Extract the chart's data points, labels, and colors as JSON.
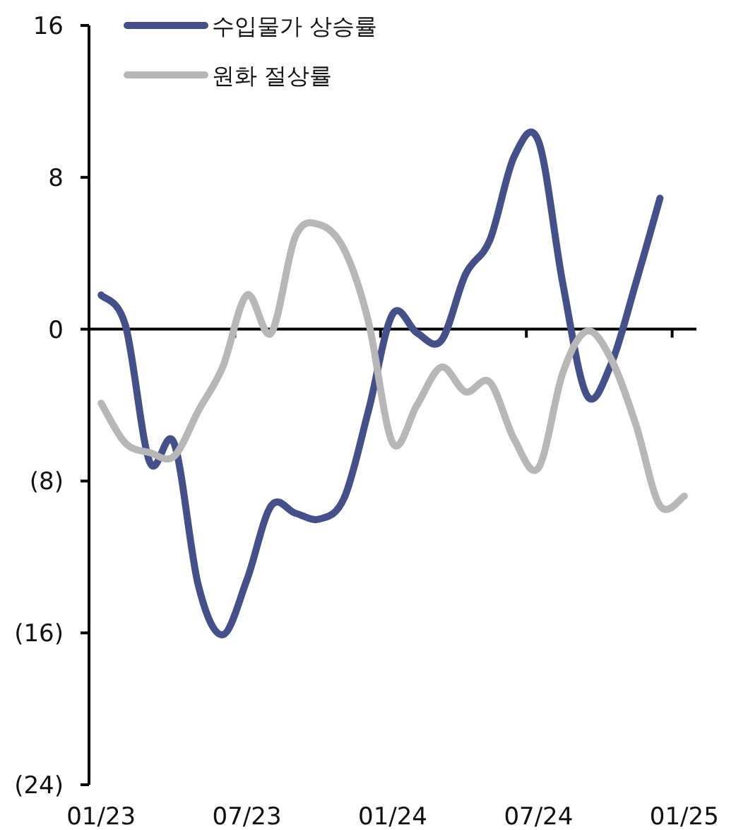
{
  "chart_data": {
    "type": "line",
    "categories": [
      "01/23",
      null,
      null,
      null,
      null,
      null,
      "07/23",
      null,
      null,
      null,
      null,
      null,
      "01/24",
      null,
      null,
      null,
      null,
      null,
      "07/24",
      null,
      null,
      null,
      null,
      null,
      "01/25"
    ],
    "series": [
      {
        "name": "수입물가 상승률",
        "color": "#44508a",
        "values": [
          1.8,
          0.2,
          -7.0,
          -6.0,
          -13.5,
          -16.1,
          -13.2,
          -9.3,
          -9.7,
          -10.0,
          -8.9,
          -4.3,
          0.8,
          -0.2,
          -0.6,
          2.9,
          4.7,
          9.1,
          9.9,
          2.4,
          -3.5,
          -1.8,
          2.4,
          6.9,
          null
        ]
      },
      {
        "name": "원화 절상률",
        "color": "#b7b7b7",
        "values": [
          -3.9,
          -6.0,
          -6.5,
          -6.7,
          -4.3,
          -2.0,
          1.8,
          -0.2,
          4.9,
          5.5,
          4.2,
          0.4,
          -6.0,
          -4.0,
          -2.0,
          -3.3,
          -2.8,
          -5.8,
          -7.3,
          -2.3,
          -0.1,
          -1.6,
          -5.0,
          -9.3,
          -8.8
        ]
      }
    ],
    "ylim": [
      -24,
      16
    ],
    "yticks": [
      16,
      8,
      0,
      {
        "value": -8,
        "label": "(8)"
      },
      {
        "value": -16,
        "label": "(16)"
      },
      {
        "value": -24,
        "label": "(24)"
      }
    ],
    "legend": "top left",
    "marker": "none",
    "line_style": "solid"
  }
}
